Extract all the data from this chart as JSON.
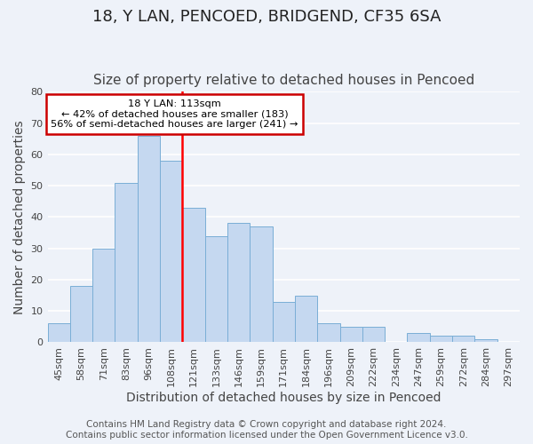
{
  "title": "18, Y LAN, PENCOED, BRIDGEND, CF35 6SA",
  "subtitle": "Size of property relative to detached houses in Pencoed",
  "xlabel": "Distribution of detached houses by size in Pencoed",
  "ylabel": "Number of detached properties",
  "categories": [
    "45sqm",
    "58sqm",
    "71sqm",
    "83sqm",
    "96sqm",
    "108sqm",
    "121sqm",
    "133sqm",
    "146sqm",
    "159sqm",
    "171sqm",
    "184sqm",
    "196sqm",
    "209sqm",
    "222sqm",
    "234sqm",
    "247sqm",
    "259sqm",
    "272sqm",
    "284sqm",
    "297sqm"
  ],
  "values": [
    6,
    18,
    30,
    51,
    66,
    58,
    43,
    34,
    38,
    37,
    13,
    15,
    6,
    5,
    5,
    0,
    3,
    2,
    2,
    1,
    0
  ],
  "bar_color": "#c5d8f0",
  "bar_edge_color": "#7aaed6",
  "redline_x": 5,
  "redline_label": "18 Y LAN: 113sqm",
  "annotation_line1": "← 42% of detached houses are smaller (183)",
  "annotation_line2": "56% of semi-detached houses are larger (241) →",
  "annotation_box_edge": "#cc0000",
  "ylim": [
    0,
    80
  ],
  "yticks": [
    0,
    10,
    20,
    30,
    40,
    50,
    60,
    70,
    80
  ],
  "footer1": "Contains HM Land Registry data © Crown copyright and database right 2024.",
  "footer2": "Contains public sector information licensed under the Open Government Licence v3.0.",
  "background_color": "#eef2f9",
  "grid_color": "#ffffff",
  "title_fontsize": 13,
  "subtitle_fontsize": 11,
  "axis_label_fontsize": 10,
  "tick_fontsize": 8,
  "footer_fontsize": 7.5
}
